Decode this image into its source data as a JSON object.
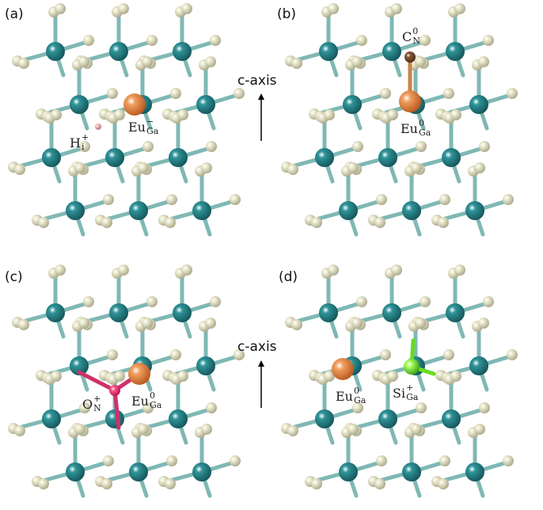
{
  "panels": [
    {
      "label": "(a)",
      "defects": [
        {
          "base": "H",
          "sub": "i",
          "sup": "+"
        },
        {
          "base": "Eu",
          "sub": "Ga",
          "sup": "−"
        }
      ]
    },
    {
      "label": "(b)",
      "defects": [
        {
          "base": "C",
          "sub": "N",
          "sup": "0"
        },
        {
          "base": "Eu",
          "sub": "Ga",
          "sup": "0"
        }
      ]
    },
    {
      "label": "(c)",
      "defects": [
        {
          "base": "O",
          "sub": "N",
          "sup": "+"
        },
        {
          "base": "Eu",
          "sub": "Ga",
          "sup": "0"
        }
      ]
    },
    {
      "label": "(d)",
      "defects": [
        {
          "base": "Eu",
          "sub": "Ga",
          "sup": "0"
        },
        {
          "base": "Si",
          "sub": "Ga",
          "sup": "+"
        }
      ]
    }
  ],
  "axis_labels": [
    "c-axis",
    "c-axis"
  ]
}
